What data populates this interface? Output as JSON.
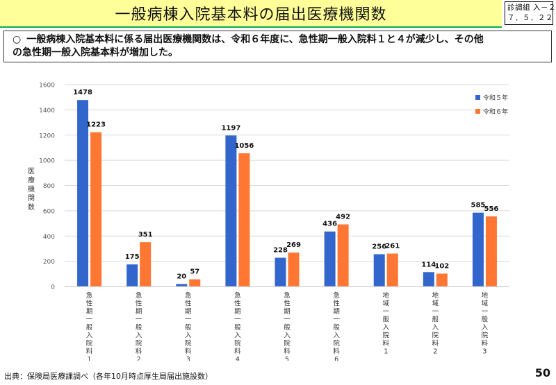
{
  "header": {
    "title": "一般病棟入院基本料の届出医療機関数",
    "doc_code_line1": "診調組 入－２",
    "doc_code_line2": "７．５．２２"
  },
  "summary": {
    "bullet": "○",
    "line1": "一般病棟入院基本料に係る届出医療機関数は、令和６年度に、急性期一般入院料１と４が減少し、その他",
    "line2": "の急性期一般入院基本料が増加した。"
  },
  "footer": {
    "source": "出典：保険局医療課調べ（各年10月時点厚生局届出施設数）",
    "page_number": "50"
  },
  "chart_data": {
    "type": "bar",
    "categories": [
      [
        "急",
        "性",
        "期",
        "一",
        "般",
        "入",
        "院",
        "料",
        "1"
      ],
      [
        "急",
        "性",
        "期",
        "一",
        "般",
        "入",
        "院",
        "料",
        "2"
      ],
      [
        "急",
        "性",
        "期",
        "一",
        "般",
        "入",
        "院",
        "料",
        "3"
      ],
      [
        "急",
        "性",
        "期",
        "一",
        "般",
        "入",
        "院",
        "料",
        "4"
      ],
      [
        "急",
        "性",
        "期",
        "一",
        "般",
        "入",
        "院",
        "料",
        "5"
      ],
      [
        "急",
        "性",
        "期",
        "一",
        "般",
        "入",
        "院",
        "料",
        "6"
      ],
      [
        "地",
        "域",
        "一",
        "般",
        "入",
        "院",
        "料",
        "1"
      ],
      [
        "地",
        "域",
        "一",
        "般",
        "入",
        "院",
        "料",
        "2"
      ],
      [
        "地",
        "域",
        "一",
        "般",
        "入",
        "院",
        "料",
        "3"
      ]
    ],
    "series": [
      {
        "name": "令和５年",
        "color": "#3366cc",
        "values": [
          1478,
          175,
          20,
          1197,
          228,
          436,
          256,
          114,
          585
        ]
      },
      {
        "name": "令和６年",
        "color": "#ff7733",
        "values": [
          1223,
          351,
          57,
          1056,
          269,
          492,
          261,
          102,
          556
        ]
      }
    ],
    "ylabel": [
      "医",
      "療",
      "機",
      "関",
      "数"
    ],
    "ylim": [
      0,
      1600
    ],
    "yticks": [
      0,
      200,
      400,
      600,
      800,
      1000,
      1200,
      1400,
      1600
    ],
    "grid": true,
    "legend_position": "top-right",
    "data_labels": true
  }
}
